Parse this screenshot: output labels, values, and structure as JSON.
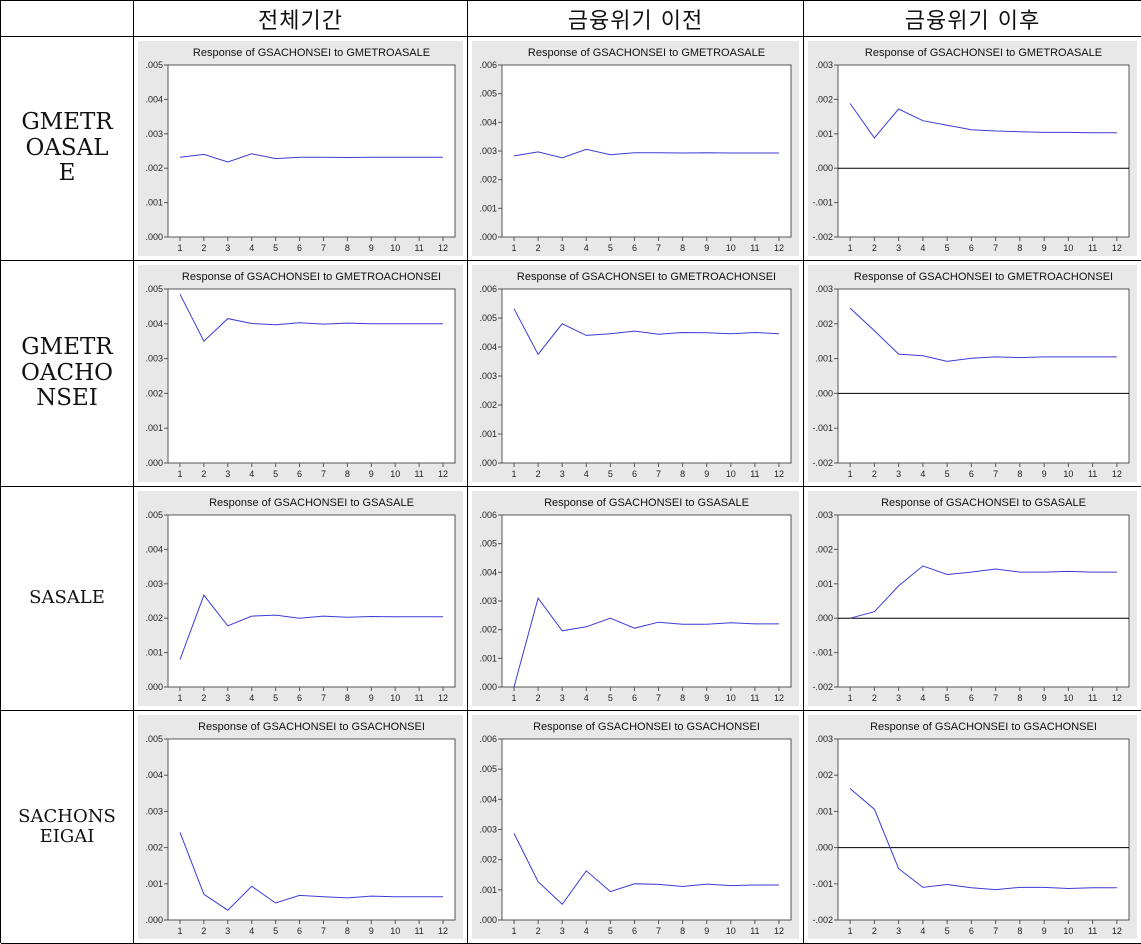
{
  "column_headers": [
    "",
    "전체기간",
    "금융위기 이전",
    "금융위기 이후"
  ],
  "row_labels": [
    "GMETR\nOASAL\nE",
    "GMETR\nOACHO\nNSEI",
    "SASALE",
    "SACHONS\nEIGAI"
  ],
  "colors": {
    "series": "#3b3bd6",
    "frame": "#555555",
    "zero_line": "#000000",
    "panel_bg": "#e8e8e8"
  },
  "chart_data": [
    {
      "type": "line",
      "title": "Response of GSACHONSEI to GMETROASALE",
      "x": [
        1,
        2,
        3,
        4,
        5,
        6,
        7,
        8,
        9,
        10,
        11,
        12
      ],
      "series": [
        {
          "values": [
            0.00232,
            0.0024,
            0.00218,
            0.00242,
            0.00228,
            0.00232,
            0.00232,
            0.00231,
            0.00232,
            0.00232,
            0.00232,
            0.00232
          ]
        }
      ],
      "ylim": [
        0,
        0.005
      ],
      "yticks": [
        ".000",
        ".001",
        ".002",
        ".003",
        ".004",
        ".005"
      ],
      "xticks": [
        "1",
        "2",
        "3",
        "4",
        "5",
        "6",
        "7",
        "8",
        "9",
        "10",
        "11",
        "12"
      ],
      "zero_line": false
    },
    {
      "type": "line",
      "title": "Response of GSACHONSEI to GMETROASALE",
      "x": [
        1,
        2,
        3,
        4,
        5,
        6,
        7,
        8,
        9,
        10,
        11,
        12
      ],
      "series": [
        {
          "values": [
            0.00283,
            0.00297,
            0.00276,
            0.00306,
            0.00287,
            0.00294,
            0.00294,
            0.00293,
            0.00294,
            0.00293,
            0.00293,
            0.00293
          ]
        }
      ],
      "ylim": [
        0,
        0.006
      ],
      "yticks": [
        ".000",
        ".001",
        ".002",
        ".003",
        ".004",
        ".005",
        ".006"
      ],
      "xticks": [
        "1",
        "2",
        "3",
        "4",
        "5",
        "6",
        "7",
        "8",
        "9",
        "10",
        "11",
        "12"
      ],
      "zero_line": false
    },
    {
      "type": "line",
      "title": "Response of GSACHONSEI to GMETROASALE",
      "x": [
        1,
        2,
        3,
        4,
        5,
        6,
        7,
        8,
        9,
        10,
        11,
        12
      ],
      "series": [
        {
          "values": [
            0.00188,
            0.00088,
            0.00172,
            0.00138,
            0.00125,
            0.00112,
            0.00108,
            0.00106,
            0.00104,
            0.00104,
            0.00103,
            0.00103
          ]
        }
      ],
      "ylim": [
        -0.002,
        0.003
      ],
      "yticks": [
        "-.002",
        "-.001",
        ".000",
        ".001",
        ".002",
        ".003"
      ],
      "xticks": [
        "1",
        "2",
        "3",
        "4",
        "5",
        "6",
        "7",
        "8",
        "9",
        "10",
        "11",
        "12"
      ],
      "zero_line": true
    },
    {
      "type": "line",
      "title": "Response of GSACHONSEI to GMETROACHONSEI",
      "x": [
        1,
        2,
        3,
        4,
        5,
        6,
        7,
        8,
        9,
        10,
        11,
        12
      ],
      "series": [
        {
          "values": [
            0.00485,
            0.0035,
            0.00415,
            0.00401,
            0.00397,
            0.00403,
            0.00399,
            0.00402,
            0.004,
            0.004,
            0.004,
            0.004
          ]
        }
      ],
      "ylim": [
        0,
        0.005
      ],
      "yticks": [
        ".000",
        ".001",
        ".002",
        ".003",
        ".004",
        ".005"
      ],
      "xticks": [
        "1",
        "2",
        "3",
        "4",
        "5",
        "6",
        "7",
        "8",
        "9",
        "10",
        "11",
        "12"
      ],
      "zero_line": false
    },
    {
      "type": "line",
      "title": "Response of GSACHONSEI to GMETROACHONSEI",
      "x": [
        1,
        2,
        3,
        4,
        5,
        6,
        7,
        8,
        9,
        10,
        11,
        12
      ],
      "series": [
        {
          "values": [
            0.00532,
            0.00375,
            0.0048,
            0.0044,
            0.00446,
            0.00455,
            0.00444,
            0.0045,
            0.00449,
            0.00446,
            0.0045,
            0.00446
          ]
        }
      ],
      "ylim": [
        0,
        0.006
      ],
      "yticks": [
        ".000",
        ".001",
        ".002",
        ".003",
        ".004",
        ".005",
        ".006"
      ],
      "xticks": [
        "1",
        "2",
        "3",
        "4",
        "5",
        "6",
        "7",
        "8",
        "9",
        "10",
        "11",
        "12"
      ],
      "zero_line": false
    },
    {
      "type": "line",
      "title": "Response of GSACHONSEI to GMETROACHONSEI",
      "x": [
        1,
        2,
        3,
        4,
        5,
        6,
        7,
        8,
        9,
        10,
        11,
        12
      ],
      "series": [
        {
          "values": [
            0.00245,
            0.0018,
            0.00113,
            0.00108,
            0.00092,
            0.00101,
            0.00105,
            0.00103,
            0.00105,
            0.00105,
            0.00105,
            0.00105
          ]
        }
      ],
      "ylim": [
        -0.002,
        0.003
      ],
      "yticks": [
        "-.002",
        "-.001",
        ".000",
        ".001",
        ".002",
        ".003"
      ],
      "xticks": [
        "1",
        "2",
        "3",
        "4",
        "5",
        "6",
        "7",
        "8",
        "9",
        "10",
        "11",
        "12"
      ],
      "zero_line": true
    },
    {
      "type": "line",
      "title": "Response of GSACHONSEI to GSASALE",
      "x": [
        1,
        2,
        3,
        4,
        5,
        6,
        7,
        8,
        9,
        10,
        11,
        12
      ],
      "series": [
        {
          "values": [
            0.0008,
            0.00267,
            0.00178,
            0.00206,
            0.00209,
            0.002,
            0.00206,
            0.00203,
            0.00205,
            0.00204,
            0.00204,
            0.00204
          ]
        }
      ],
      "ylim": [
        0,
        0.005
      ],
      "yticks": [
        ".000",
        ".001",
        ".002",
        ".003",
        ".004",
        ".005"
      ],
      "xticks": [
        "1",
        "2",
        "3",
        "4",
        "5",
        "6",
        "7",
        "8",
        "9",
        "10",
        "11",
        "12"
      ],
      "zero_line": false
    },
    {
      "type": "line",
      "title": "Response of GSACHONSEI to GSASALE",
      "x": [
        1,
        2,
        3,
        4,
        5,
        6,
        7,
        8,
        9,
        10,
        11,
        12
      ],
      "series": [
        {
          "values": [
            0.0,
            0.0031,
            0.00196,
            0.0021,
            0.0024,
            0.00205,
            0.00226,
            0.00219,
            0.00219,
            0.00224,
            0.0022,
            0.0022
          ]
        }
      ],
      "ylim": [
        0,
        0.006
      ],
      "yticks": [
        ".000",
        ".001",
        ".002",
        ".003",
        ".004",
        ".005",
        ".006"
      ],
      "xticks": [
        "1",
        "2",
        "3",
        "4",
        "5",
        "6",
        "7",
        "8",
        "9",
        "10",
        "11",
        "12"
      ],
      "zero_line": false
    },
    {
      "type": "line",
      "title": "Response of GSACHONSEI to GSASALE",
      "x": [
        1,
        2,
        3,
        4,
        5,
        6,
        7,
        8,
        9,
        10,
        11,
        12
      ],
      "series": [
        {
          "values": [
            0.0,
            0.00019,
            0.00094,
            0.00152,
            0.00127,
            0.00134,
            0.00143,
            0.00134,
            0.00134,
            0.00136,
            0.00134,
            0.00134
          ]
        }
      ],
      "ylim": [
        -0.002,
        0.003
      ],
      "yticks": [
        "-.002",
        "-.001",
        ".000",
        ".001",
        ".002",
        ".003"
      ],
      "xticks": [
        "1",
        "2",
        "3",
        "4",
        "5",
        "6",
        "7",
        "8",
        "9",
        "10",
        "11",
        "12"
      ],
      "zero_line": true
    },
    {
      "type": "line",
      "title": "Response of GSACHONSEI to GSACHONSEI",
      "x": [
        1,
        2,
        3,
        4,
        5,
        6,
        7,
        8,
        9,
        10,
        11,
        12
      ],
      "series": [
        {
          "values": [
            0.00242,
            0.00071,
            0.00027,
            0.00093,
            0.00047,
            0.00068,
            0.00064,
            0.00061,
            0.00066,
            0.00064,
            0.00064,
            0.00064
          ]
        }
      ],
      "ylim": [
        0,
        0.005
      ],
      "yticks": [
        ".000",
        ".001",
        ".002",
        ".003",
        ".004",
        ".005"
      ],
      "xticks": [
        "1",
        "2",
        "3",
        "4",
        "5",
        "6",
        "7",
        "8",
        "9",
        "10",
        "11",
        "12"
      ],
      "zero_line": false
    },
    {
      "type": "line",
      "title": "Response of GSACHONSEI to GSACHONSEI",
      "x": [
        1,
        2,
        3,
        4,
        5,
        6,
        7,
        8,
        9,
        10,
        11,
        12
      ],
      "series": [
        {
          "values": [
            0.00287,
            0.00127,
            0.00052,
            0.00163,
            0.00094,
            0.0012,
            0.00118,
            0.00111,
            0.00119,
            0.00114,
            0.00116,
            0.00116
          ]
        }
      ],
      "ylim": [
        0,
        0.006
      ],
      "yticks": [
        ".000",
        ".001",
        ".002",
        ".003",
        ".004",
        ".005",
        ".006"
      ],
      "xticks": [
        "1",
        "2",
        "3",
        "4",
        "5",
        "6",
        "7",
        "8",
        "9",
        "10",
        "11",
        "12"
      ],
      "zero_line": false
    },
    {
      "type": "line",
      "title": "Response of GSACHONSEI to GSACHONSEI",
      "x": [
        1,
        2,
        3,
        4,
        5,
        6,
        7,
        8,
        9,
        10,
        11,
        12
      ],
      "series": [
        {
          "values": [
            0.00163,
            0.00106,
            -0.00058,
            -0.0011,
            -0.00102,
            -0.00111,
            -0.00116,
            -0.0011,
            -0.0011,
            -0.00113,
            -0.00111,
            -0.00111
          ]
        }
      ],
      "ylim": [
        -0.002,
        0.003
      ],
      "yticks": [
        "-.002",
        "-.001",
        ".000",
        ".001",
        ".002",
        ".003"
      ],
      "xticks": [
        "1",
        "2",
        "3",
        "4",
        "5",
        "6",
        "7",
        "8",
        "9",
        "10",
        "11",
        "12"
      ],
      "zero_line": true
    }
  ]
}
